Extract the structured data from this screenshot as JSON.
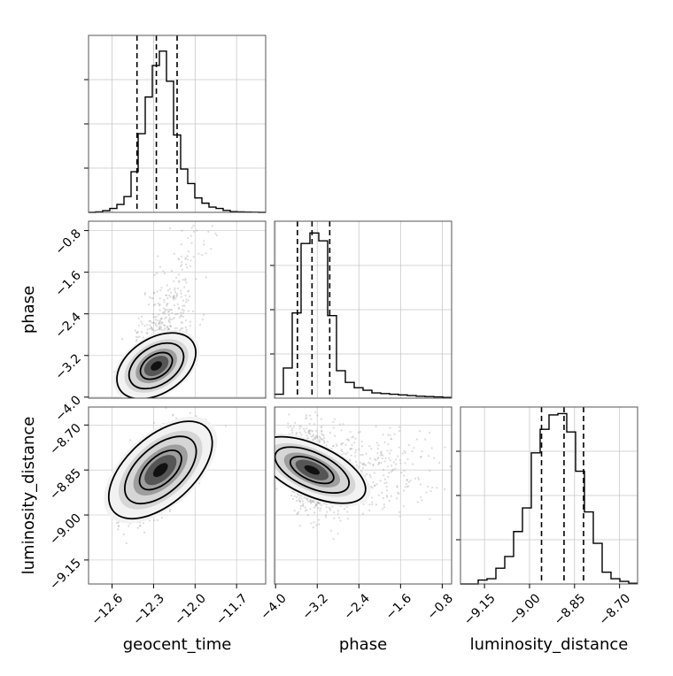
{
  "chart_data": {
    "type": "corner",
    "parameters": [
      "geocent_time",
      "phase",
      "luminosity_distance"
    ],
    "grid": true,
    "quantile_lines": "dashed",
    "axes": {
      "geocent_time": {
        "range": [
          -12.77,
          -11.49
        ],
        "ticks": [
          -12.6,
          -12.3,
          -12.0,
          -11.7
        ],
        "tick_labels": [
          "−12.6",
          "−12.3",
          "−12.0",
          "−11.7"
        ],
        "label": "geocent_time"
      },
      "phase": {
        "range": [
          -4.02,
          -0.62
        ],
        "ticks": [
          -4.0,
          -3.2,
          -2.4,
          -1.6,
          -0.8
        ],
        "tick_labels": [
          "−4.0",
          "−3.2",
          "−2.4",
          "−1.6",
          "−0.8"
        ],
        "label": "phase"
      },
      "luminosity_distance": {
        "range": [
          -9.23,
          -8.64
        ],
        "ticks": [
          -9.15,
          -9.0,
          -8.85,
          -8.7
        ],
        "tick_labels": [
          "−9.15",
          "−9.00",
          "−8.85",
          "−8.70"
        ],
        "label": "luminosity_distance"
      }
    },
    "marginals": [
      {
        "parameter": "geocent_time",
        "quantiles": [
          -12.42,
          -12.28,
          -12.13
        ],
        "hist_x_range": [
          -12.77,
          -11.49
        ],
        "hist_counts": [
          0,
          0.4,
          1.3,
          3,
          6,
          12,
          31,
          60,
          88,
          112,
          123,
          100,
          59,
          33,
          22,
          11,
          7,
          4,
          3,
          1.5,
          0.5,
          0.4,
          0.2,
          0.1,
          0
        ],
        "count_max": 135
      },
      {
        "parameter": "phase",
        "quantiles": [
          -3.58,
          -3.3,
          -2.96
        ],
        "hist_x_range": [
          -4.02,
          -0.62
        ],
        "hist_counts": [
          3,
          23,
          65,
          118,
          126,
          120,
          63,
          21,
          12,
          8,
          6,
          4,
          3.5,
          3,
          2.5,
          2,
          1.5,
          1.2,
          1,
          0.5
        ],
        "count_max": 135
      },
      {
        "parameter": "luminosity_distance",
        "quantiles": [
          -8.96,
          -8.885,
          -8.82
        ],
        "hist_x_range": [
          -9.23,
          -8.64
        ],
        "hist_counts": [
          0,
          0,
          3,
          4,
          12,
          21,
          40,
          58,
          100,
          118,
          129,
          130,
          116,
          86,
          55,
          31,
          9,
          4,
          2,
          0.5
        ],
        "count_max": 135
      }
    ],
    "joint": [
      {
        "x": "geocent_time",
        "y": "phase",
        "peak": [
          -12.28,
          -3.4
        ],
        "sigma": [
          0.09,
          0.25
        ],
        "rho": 0.62,
        "tail": "phase"
      },
      {
        "x": "geocent_time",
        "y": "luminosity_distance",
        "peak": [
          -12.25,
          -8.85
        ],
        "sigma": [
          0.11,
          0.07
        ],
        "rho": 0.65
      },
      {
        "x": "phase",
        "y": "luminosity_distance",
        "peak": [
          -3.3,
          -8.85
        ],
        "sigma": [
          0.22,
          0.07
        ],
        "rho": -0.25,
        "tail": "phase"
      }
    ]
  }
}
